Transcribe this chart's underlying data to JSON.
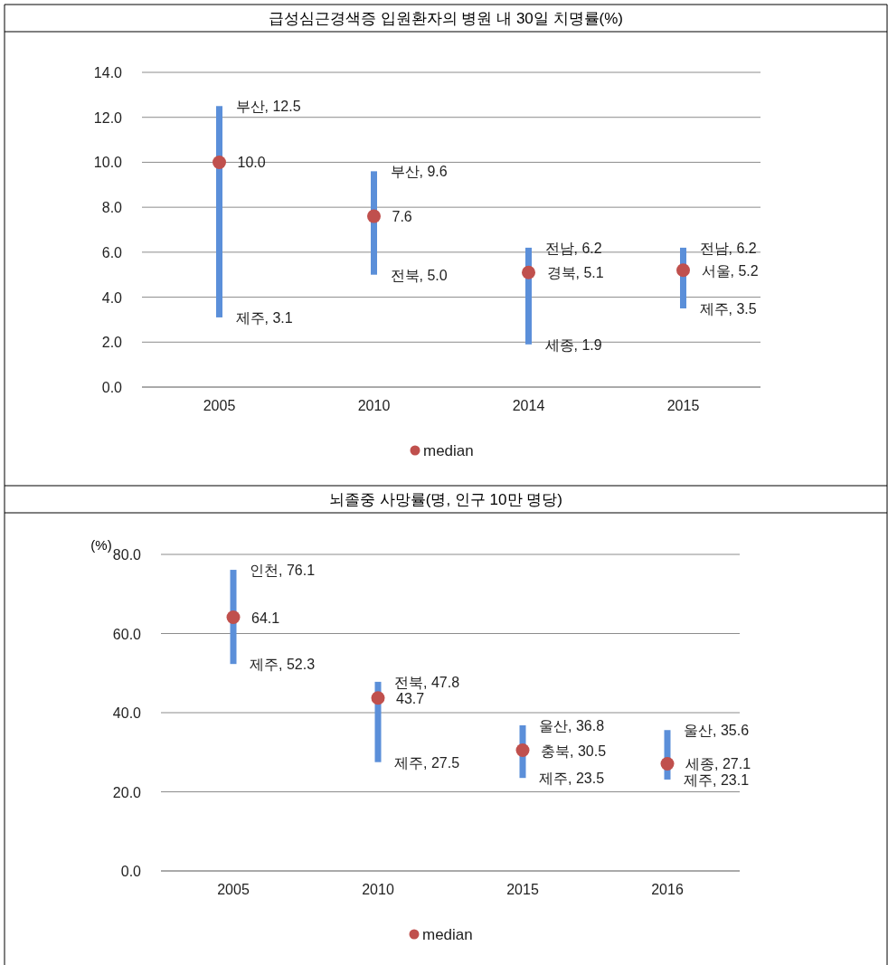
{
  "chart_data": [
    {
      "type": "bar",
      "title": "급성심근경색증 입원환자의 병원 내 30일 치명률(%)",
      "categories": [
        "2005",
        "2010",
        "2014",
        "2015"
      ],
      "ylim": [
        0,
        14
      ],
      "yticks": [
        {
          "value": 0,
          "label": "0.0"
        },
        {
          "value": 2,
          "label": "2.0"
        },
        {
          "value": 4,
          "label": "4.0"
        },
        {
          "value": 6,
          "label": "6.0"
        },
        {
          "value": 8,
          "label": "8.0"
        },
        {
          "value": 10,
          "label": "10.0"
        },
        {
          "value": 12,
          "label": "12.0"
        },
        {
          "value": 14,
          "label": "14.0"
        }
      ],
      "grid": "y",
      "legend": "bottom",
      "series": [
        {
          "color": "#5b8fd9",
          "base": [
            3.1,
            5.0,
            1.9,
            3.5
          ],
          "values": [
            9.4,
            4.6,
            4.3,
            2.7
          ]
        },
        {
          "type": "scatter",
          "name": "median",
          "color": "#c0504d",
          "marker": "circle",
          "values": [
            10.0,
            7.6,
            5.1,
            5.2
          ],
          "value_labels": [
            "10.0",
            "7.6",
            "경북, 5.1",
            "서울, 5.2"
          ]
        }
      ],
      "annotations": [
        {
          "text": "부산, 12.5",
          "x": "2005",
          "y": 12.5
        },
        {
          "text": "제주, 3.1",
          "x": "2005",
          "y": 3.1
        },
        {
          "text": "부산, 9.6",
          "x": "2010",
          "y": 9.6
        },
        {
          "text": "전북, 5.0",
          "x": "2010",
          "y": 5.0
        },
        {
          "text": "전남, 6.2",
          "x": "2014",
          "y": 6.2
        },
        {
          "text": "세종, 1.9",
          "x": "2014",
          "y": 1.9
        },
        {
          "text": "전남, 6.2",
          "x": "2015",
          "y": 6.2
        },
        {
          "text": "제주, 3.5",
          "x": "2015",
          "y": 3.5
        }
      ]
    },
    {
      "type": "bar",
      "title": "뇌졸중 사망률(명, 인구 10만 명당)",
      "ylabel": "(%)",
      "categories": [
        "2005",
        "2010",
        "2015",
        "2016"
      ],
      "ylim": [
        0,
        80
      ],
      "yticks": [
        {
          "value": 0,
          "label": "0.0"
        },
        {
          "value": 20,
          "label": "20.0"
        },
        {
          "value": 40,
          "label": "40.0"
        },
        {
          "value": 60,
          "label": "60.0"
        },
        {
          "value": 80,
          "label": "80.0"
        }
      ],
      "grid": "y",
      "legend": "bottom",
      "series": [
        {
          "color": "#5b8fd9",
          "base": [
            52.3,
            27.5,
            23.5,
            23.1
          ],
          "values": [
            23.8,
            20.3,
            13.3,
            12.5
          ]
        },
        {
          "type": "scatter",
          "name": "median",
          "color": "#c0504d",
          "marker": "circle",
          "values": [
            64.1,
            43.7,
            30.5,
            27.1
          ],
          "value_labels": [
            "64.1",
            "43.7",
            "충북, 30.5",
            "세종, 27.1"
          ]
        }
      ],
      "annotations": [
        {
          "text": "인천, 76.1",
          "x": "2005",
          "y": 76.1
        },
        {
          "text": "제주, 52.3",
          "x": "2005",
          "y": 52.3
        },
        {
          "text": "전북, 47.8",
          "x": "2010",
          "y": 47.8
        },
        {
          "text": "제주, 27.5",
          "x": "2010",
          "y": 27.5
        },
        {
          "text": "울산, 36.8",
          "x": "2015",
          "y": 36.8
        },
        {
          "text": "제주, 23.5",
          "x": "2015",
          "y": 23.5
        },
        {
          "text": "울산, 35.6",
          "x": "2016",
          "y": 35.6
        },
        {
          "text": "제주, 23.1",
          "x": "2016",
          "y": 23.1
        }
      ]
    }
  ]
}
